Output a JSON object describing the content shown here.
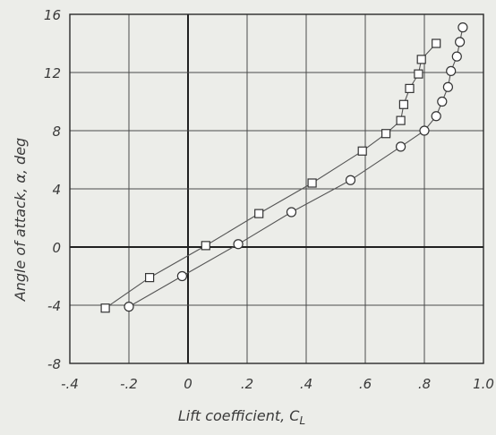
{
  "chart_data": {
    "type": "scatter",
    "title": "",
    "xlabel": "Lift coefficient, C",
    "xlabel_sub": "L",
    "ylabel": "Angle of attack, α, deg",
    "xlim": [
      -0.4,
      1.0
    ],
    "ylim": [
      -8,
      16
    ],
    "grid": true,
    "x_ticks": [
      -0.4,
      -0.2,
      0,
      0.2,
      0.4,
      0.6,
      0.8,
      1.0
    ],
    "x_tick_labels": [
      "-.4",
      "-.2",
      "0",
      ".2",
      ".4",
      ".6",
      ".8",
      "1.0"
    ],
    "y_ticks": [
      -8,
      -4,
      0,
      4,
      8,
      12,
      16
    ],
    "y_tick_labels": [
      "-8",
      "-4",
      "0",
      "4",
      "8",
      "12",
      "16"
    ],
    "series": [
      {
        "marker": "square",
        "points": [
          [
            -0.28,
            -4.2
          ],
          [
            -0.13,
            -2.1
          ],
          [
            0.06,
            0.1
          ],
          [
            0.24,
            2.3
          ],
          [
            0.42,
            4.4
          ],
          [
            0.59,
            6.6
          ],
          [
            0.67,
            7.8
          ],
          [
            0.72,
            8.7
          ],
          [
            0.73,
            9.8
          ],
          [
            0.75,
            10.9
          ],
          [
            0.78,
            11.9
          ],
          [
            0.79,
            12.9
          ],
          [
            0.84,
            14.0
          ]
        ]
      },
      {
        "marker": "circle",
        "points": [
          [
            -0.2,
            -4.1
          ],
          [
            -0.02,
            -2.0
          ],
          [
            0.17,
            0.2
          ],
          [
            0.35,
            2.4
          ],
          [
            0.55,
            4.6
          ],
          [
            0.72,
            6.9
          ],
          [
            0.8,
            8.0
          ],
          [
            0.84,
            9.0
          ],
          [
            0.86,
            10.0
          ],
          [
            0.88,
            11.0
          ],
          [
            0.89,
            12.1
          ],
          [
            0.91,
            13.1
          ],
          [
            0.92,
            14.1
          ],
          [
            0.93,
            15.1
          ]
        ]
      }
    ]
  },
  "colors": {
    "background": "#ecede9",
    "ink": "#333333"
  }
}
